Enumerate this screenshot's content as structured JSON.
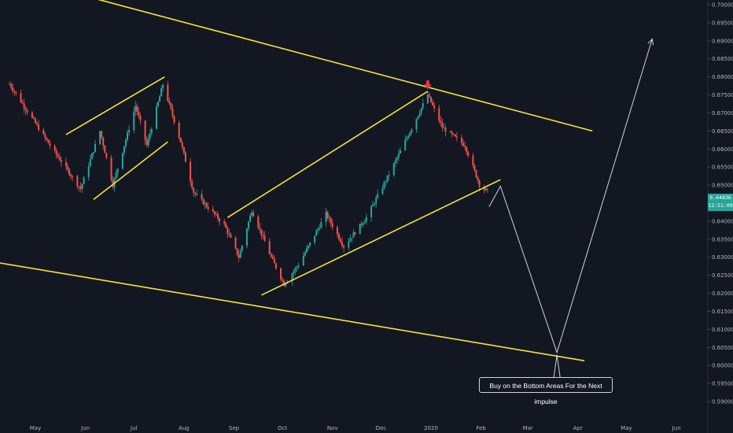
{
  "chart_data": {
    "type": "candlestick",
    "instrument_note": "",
    "y_axis": {
      "ticks": [
        "0.70000",
        "0.69500",
        "0.69000",
        "0.68500",
        "0.68000",
        "0.67500",
        "0.67000",
        "0.66500",
        "0.66000",
        "0.65500",
        "0.65000",
        "0.64500",
        "0.64000",
        "0.63500",
        "0.63000",
        "0.62500",
        "0.62000",
        "0.61500",
        "0.61000",
        "0.60500",
        "0.60000",
        "0.59500",
        "0.59000"
      ],
      "ylim": [
        0.5875,
        0.701
      ],
      "position": "right"
    },
    "x_axis": {
      "ticks": [
        "May",
        "Jun",
        "Jul",
        "Aug",
        "Sep",
        "Oct",
        "Nov",
        "Dec",
        "2020",
        "Feb",
        "Mar",
        "Apr",
        "May",
        "Jun"
      ]
    },
    "last_price": {
      "value": "0.64836",
      "countdown": "12:51:09"
    },
    "candles_summary": {
      "start": "2019-04-15",
      "end": "2020-02-05",
      "anchor_prices": [
        [
          "2019-04-15",
          0.678
        ],
        [
          "2019-05-10",
          0.661
        ],
        [
          "2019-05-29",
          0.649
        ],
        [
          "2019-06-10",
          0.665
        ],
        [
          "2019-06-18",
          0.65
        ],
        [
          "2019-07-02",
          0.672
        ],
        [
          "2019-07-09",
          0.661
        ],
        [
          "2019-07-19",
          0.678
        ],
        [
          "2019-07-30",
          0.662
        ],
        [
          "2019-08-07",
          0.648
        ],
        [
          "2019-08-26",
          0.639
        ],
        [
          "2019-09-04",
          0.63
        ],
        [
          "2019-09-12",
          0.643
        ],
        [
          "2019-09-24",
          0.63
        ],
        [
          "2019-10-02",
          0.6225
        ],
        [
          "2019-10-11",
          0.628
        ],
        [
          "2019-10-28",
          0.642
        ],
        [
          "2019-11-08",
          0.633
        ],
        [
          "2019-11-22",
          0.641
        ],
        [
          "2019-12-06",
          0.653
        ],
        [
          "2019-12-30",
          0.675
        ],
        [
          "2020-01-08",
          0.666
        ],
        [
          "2020-01-22",
          0.661
        ],
        [
          "2020-02-01",
          0.649
        ],
        [
          "2020-02-05",
          0.6484
        ]
      ]
    },
    "drawings": {
      "trend_lines": [
        {
          "from": [
            "2019-04-15",
            0.708
          ],
          "to": [
            "2020-04-10",
            0.665
          ],
          "color": "#f5e52f"
        },
        {
          "from": [
            "2019-04-01",
            0.629
          ],
          "to": [
            "2020-04-05",
            0.6013
          ],
          "color": "#f5e52f"
        },
        {
          "from": [
            "2019-05-20",
            0.664
          ],
          "to": [
            "2019-07-20",
            0.68
          ],
          "color": "#f5e52f"
        },
        {
          "from": [
            "2019-06-06",
            0.646
          ],
          "to": [
            "2019-07-22",
            0.662
          ],
          "color": "#f5e52f"
        },
        {
          "from": [
            "2019-08-28",
            0.641
          ],
          "to": [
            "2019-12-30",
            0.676
          ],
          "color": "#f5e52f"
        },
        {
          "from": [
            "2019-09-18",
            0.6195
          ],
          "to": [
            "2020-02-13",
            0.6515
          ],
          "color": "#f5e52f"
        }
      ],
      "projection_path": [
        [
          "2020-02-06",
          0.644
        ],
        [
          "2020-02-13",
          0.6497
        ],
        [
          "2020-03-19",
          0.6036
        ],
        [
          "2020-05-17",
          0.6905
        ]
      ],
      "marker": {
        "date": "2019-12-30",
        "price": 0.6766,
        "kind": "arrow-down",
        "color": "#f23645"
      },
      "callout_text": "Buy on the Bottom Areas For the Next impulse"
    },
    "colors": {
      "background": "#131722",
      "up": "#26a69a",
      "down": "#ef5350",
      "trend_line": "#f5e52f",
      "projection": "#d1d4dc",
      "axis_text": "#b2b5be"
    },
    "grid": false
  }
}
